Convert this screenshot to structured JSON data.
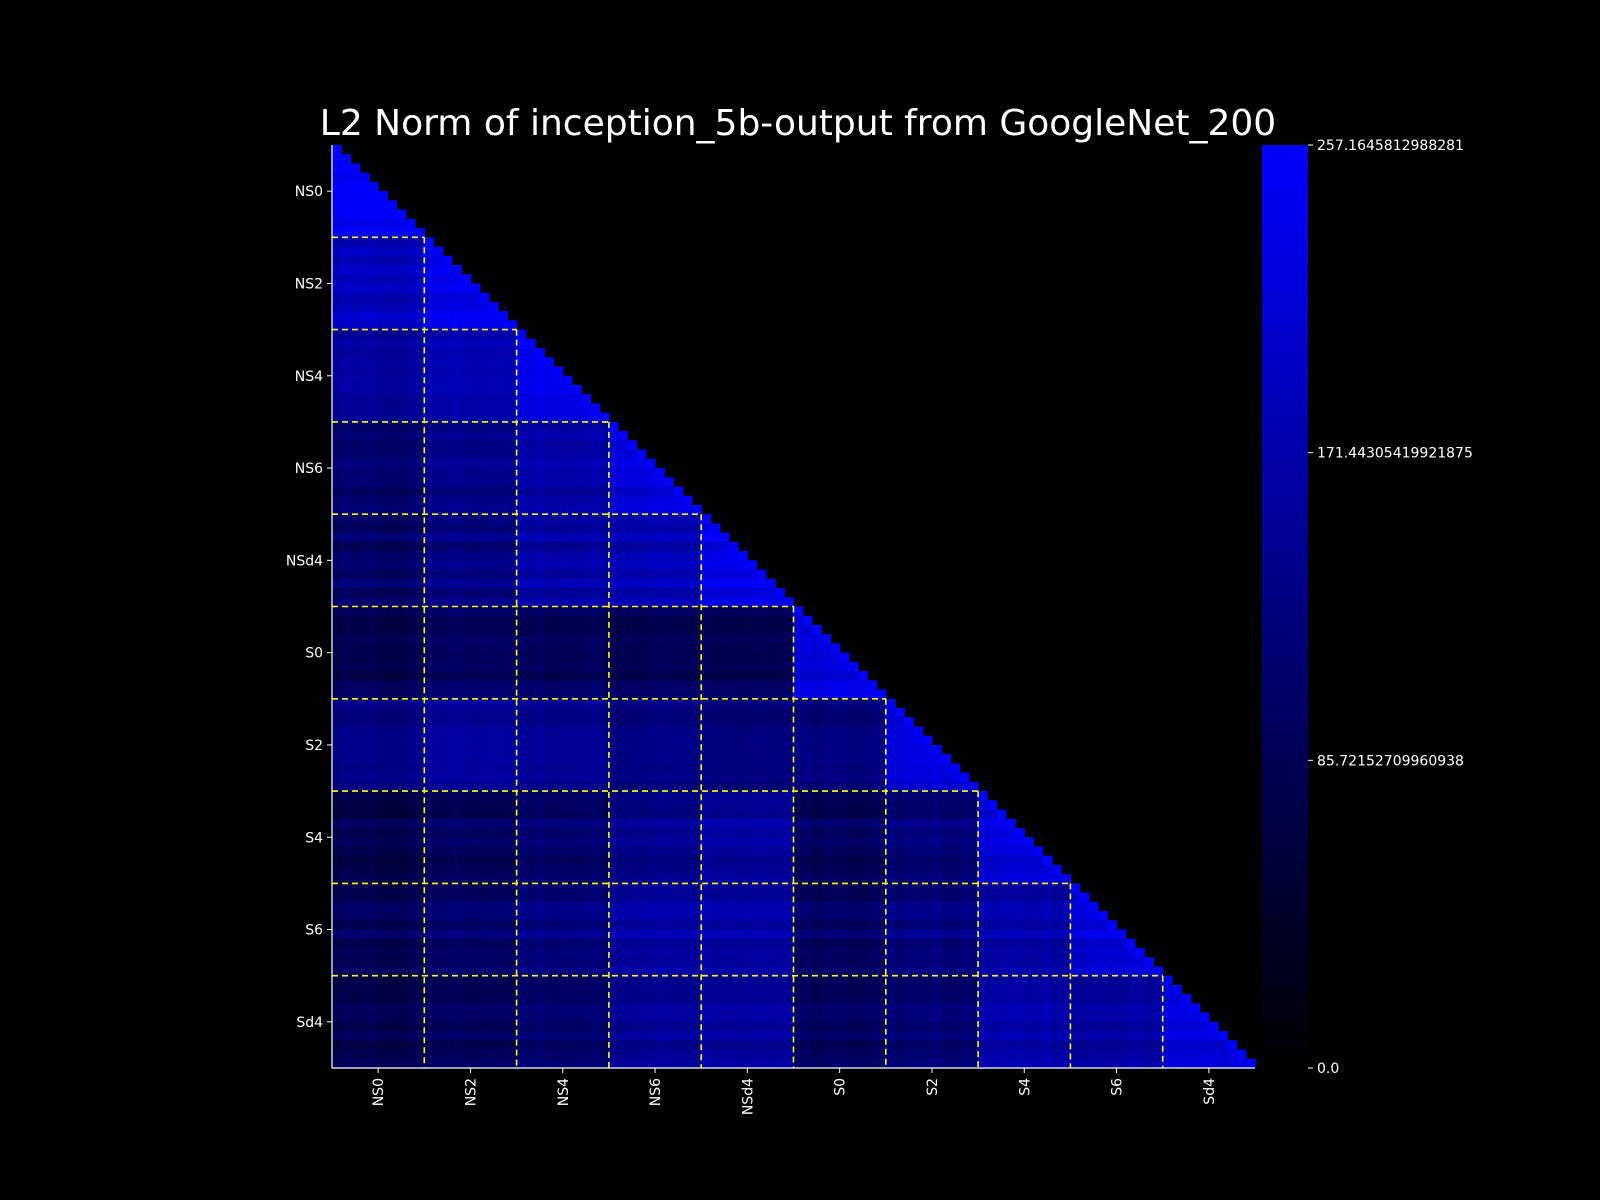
{
  "chart_data": {
    "type": "heatmap",
    "title": "L2 Norm of inception_5b-output from GoogleNet_200",
    "mask": "upper-triangle",
    "n_cells": 100,
    "group_size": 10,
    "x_tick_labels": [
      "NS0",
      "NS2",
      "NS4",
      "NS6",
      "NSd4",
      "S0",
      "S2",
      "S4",
      "S6",
      "Sd4"
    ],
    "y_tick_labels": [
      "NS0",
      "NS2",
      "NS4",
      "NS6",
      "NSd4",
      "S0",
      "S2",
      "S4",
      "S6",
      "Sd4"
    ],
    "group_boundaries_style": "yellow-dashed",
    "colorbar": {
      "min": 0.0,
      "max": 257.1645812988281,
      "ticks": [
        "257.1645812988281",
        "171.44305419921875",
        "85.72152709960938",
        "0.0"
      ],
      "colormap": [
        "#000000",
        "#0000ff"
      ]
    },
    "block_means": [
      [
        230
      ],
      [
        185,
        215
      ],
      [
        150,
        175,
        215
      ],
      [
        110,
        140,
        170,
        205
      ],
      [
        100,
        130,
        165,
        180,
        210
      ],
      [
        85,
        105,
        100,
        95,
        90,
        205
      ],
      [
        130,
        155,
        145,
        130,
        120,
        120,
        200
      ],
      [
        75,
        95,
        110,
        140,
        155,
        90,
        120,
        200
      ],
      [
        90,
        110,
        130,
        165,
        165,
        100,
        130,
        170,
        200
      ],
      [
        80,
        95,
        110,
        150,
        155,
        95,
        115,
        170,
        160,
        200
      ]
    ],
    "diagonal_value": 257.1645812988281
  },
  "colors": {
    "background": "#000000",
    "text": "#ffffff",
    "grid_lines": "#ffff00"
  }
}
